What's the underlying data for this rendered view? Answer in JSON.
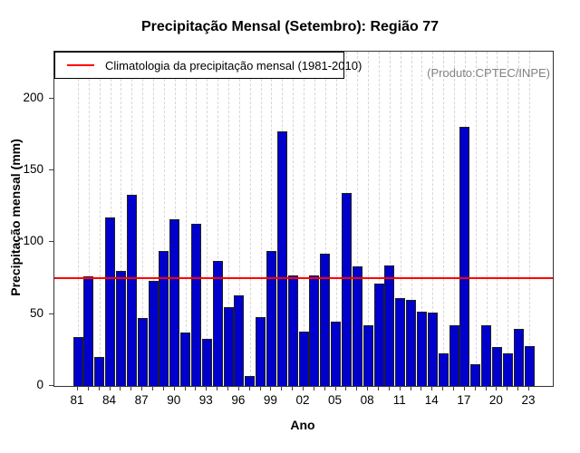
{
  "chart_data": {
    "type": "bar",
    "title": "Precipitação Mensal (Setembro): Região 77",
    "xlabel": "Ano",
    "ylabel": "Precipitação mensal (mm)",
    "watermark": "(Produto:CPTEC/INPE)",
    "legend": {
      "label": "Climatologia da precipitação mensal (1981-2010)",
      "line_color": "#ff0000"
    },
    "climatology_value": 75,
    "bar_color": "#0000cd",
    "grid": "vertical-dashed",
    "ylim": [
      0,
      232.6
    ],
    "yticks": [
      0,
      50,
      100,
      150,
      200
    ],
    "label_every": 3,
    "categories": [
      "81",
      "82",
      "83",
      "84",
      "85",
      "86",
      "87",
      "88",
      "89",
      "90",
      "91",
      "92",
      "93",
      "94",
      "95",
      "96",
      "97",
      "98",
      "99",
      "00",
      "01",
      "02",
      "03",
      "04",
      "05",
      "06",
      "07",
      "08",
      "09",
      "10",
      "11",
      "12",
      "13",
      "14",
      "15",
      "16",
      "17",
      "18",
      "19",
      "20",
      "21",
      "22",
      "23"
    ],
    "values": [
      34,
      76,
      20,
      117,
      80,
      133,
      47,
      73,
      94,
      116,
      37,
      113,
      33,
      87,
      55,
      63,
      7,
      48,
      94,
      177,
      77,
      38,
      77,
      92,
      45,
      134,
      83,
      42,
      71,
      84,
      61,
      60,
      52,
      51,
      23,
      42,
      180,
      15,
      42,
      27,
      23,
      40,
      28
    ]
  }
}
